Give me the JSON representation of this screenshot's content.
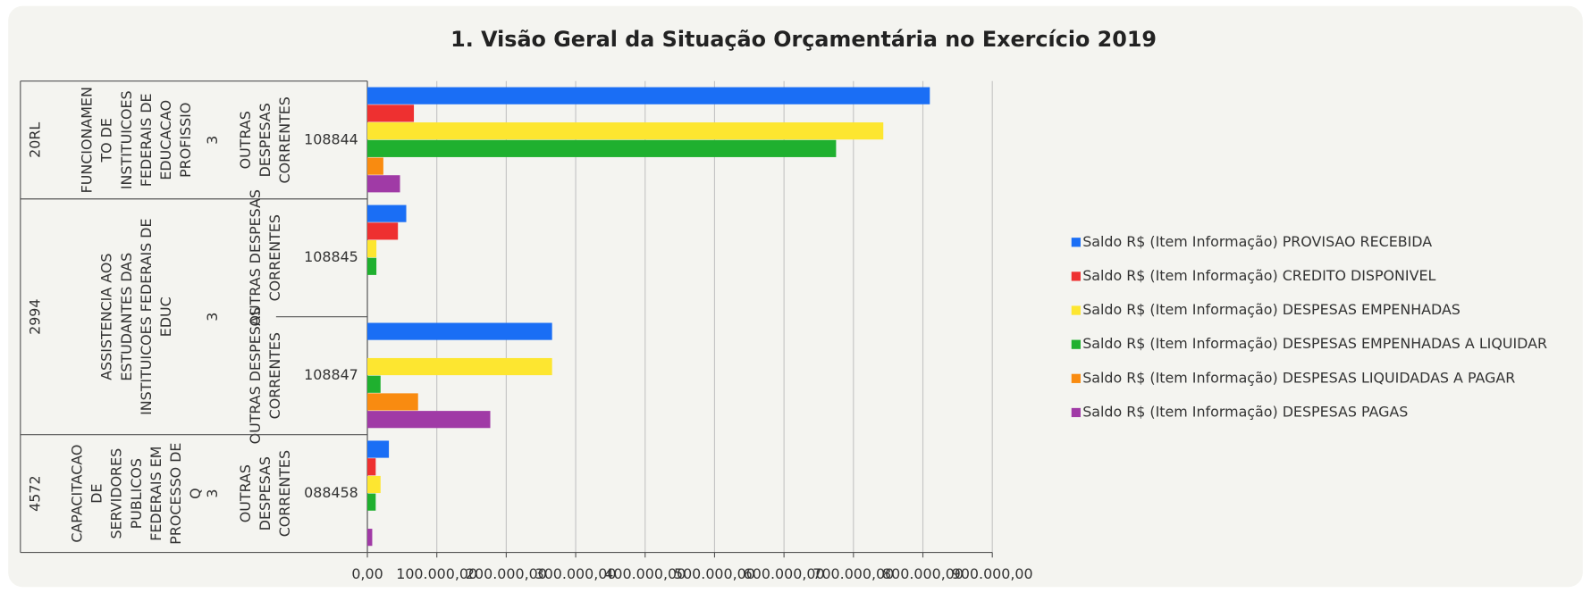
{
  "chart_data": {
    "type": "hbar",
    "title": "1. Visão Geral da Situação Orçamentária no Exercício 2019",
    "groups": [
      {
        "code": "20RL",
        "description": [
          "FUNCIONAMEN",
          "TO DE",
          "INSTITUICOES",
          "FEDERAIS DE",
          "EDUCACAO",
          "PROFISSIO"
        ],
        "sub": "3",
        "items": [
          {
            "nature": [
              "OUTRAS",
              "DESPESAS",
              "CORRENTES"
            ],
            "category": "108844"
          }
        ]
      },
      {
        "code": "2994",
        "description": [
          "ASSISTENCIA AOS",
          "ESTUDANTES DAS",
          "INSTITUICOES FEDERAIS DE",
          "EDUC"
        ],
        "sub": "3",
        "items": [
          {
            "nature": [
              "OUTRAS DESPESAS",
              "CORRENTES"
            ],
            "category": "108845"
          },
          {
            "nature": [
              "OUTRAS DESPESAS",
              "CORRENTES"
            ],
            "category": "108847"
          }
        ]
      },
      {
        "code": "4572",
        "description": [
          "CAPACITACAO",
          "DE",
          "SERVIDORES",
          "PUBLICOS",
          "FEDERAIS EM",
          "PROCESSO DE",
          "Q"
        ],
        "sub": "3",
        "items": [
          {
            "nature": [
              "OUTRAS",
              "DESPESAS",
              "CORRENTES"
            ],
            "category": "088458"
          }
        ]
      }
    ],
    "series": [
      {
        "name": "Saldo R$ (Item Informação) PROVISAO RECEBIDA",
        "color": "#1a6ef5",
        "values": [
          810000,
          56000,
          266000,
          31000
        ]
      },
      {
        "name": "Saldo R$ (Item Informação) CREDITO DISPONIVEL",
        "color": "#ee3030",
        "values": [
          67000,
          44000,
          0,
          12000
        ]
      },
      {
        "name": "Saldo R$ (Item Informação) DESPESAS EMPENHADAS",
        "color": "#fde630",
        "values": [
          743000,
          13000,
          266000,
          19000
        ]
      },
      {
        "name": "Saldo R$ (Item Informação) DESPESAS EMPENHADAS A LIQUIDAR",
        "color": "#1fb02f",
        "values": [
          675000,
          13000,
          19000,
          12000
        ]
      },
      {
        "name": "Saldo R$ (Item Informação) DESPESAS LIQUIDADAS A PAGAR",
        "color": "#f98b10",
        "values": [
          23000,
          0,
          73000,
          0
        ]
      },
      {
        "name": "Saldo R$ (Item Informação) DESPESAS PAGAS",
        "color": "#a03aa6",
        "values": [
          47000,
          0,
          177000,
          7000
        ]
      }
    ],
    "xlim": [
      0,
      900000
    ],
    "xticks": [
      {
        "value": 0,
        "label": "0,00"
      },
      {
        "value": 100000,
        "label": "100.000,00"
      },
      {
        "value": 200000,
        "label": "200.000,00"
      },
      {
        "value": 300000,
        "label": "300.000,00"
      },
      {
        "value": 400000,
        "label": "400.000,00"
      },
      {
        "value": 500000,
        "label": "500.000,00"
      },
      {
        "value": 600000,
        "label": "600.000,00"
      },
      {
        "value": 700000,
        "label": "700.000,00"
      },
      {
        "value": 800000,
        "label": "800.000,00"
      },
      {
        "value": 900000,
        "label": "900.000,00"
      }
    ],
    "grid": true,
    "legend": "right"
  }
}
